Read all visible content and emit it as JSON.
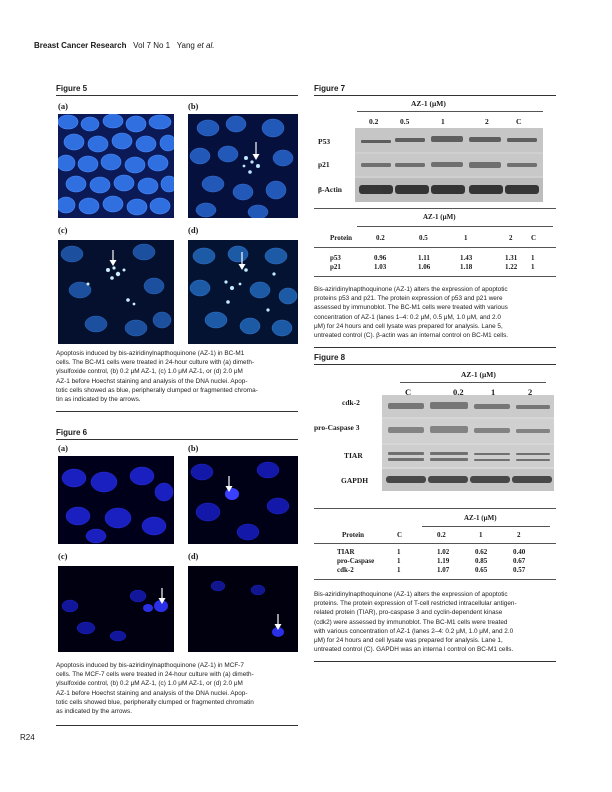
{
  "header": {
    "journal": "Breast Cancer Research",
    "volume": "Vol 7 No 1",
    "authors": "Yang",
    "etal": "et al."
  },
  "page_number": "R24",
  "figure5": {
    "title": "Figure 5",
    "panels": [
      "(a)",
      "(b)",
      "(c)",
      "(d)"
    ],
    "caption_lines": [
      "Apoptosis induced by bis-aziridinylnapthoquinone (AZ-1) in BC-M1",
      "cells. The BC-M1 cells were treated in 24-hour culture with (a) dimeth-",
      "ylsulfoxide control, (b) 0.2 μM AZ-1, (c) 1.0 μM AZ-1, or (d) 2.0 μM",
      "AZ-1 before Hoechst staining and analysis of the DNA nuclei. Apop-",
      "totic cells showed as blue, peripherally clumped or fragmented chroma-",
      "tin as indicated by the arrows."
    ]
  },
  "figure6": {
    "title": "Figure 6",
    "panels": [
      "(a)",
      "(b)",
      "(c)",
      "(d)"
    ],
    "caption_lines": [
      "Apoptosis induced by bis-aziridinylnapthoquinone (AZ-1) in MCF-7",
      "cells. The MCF-7 cells were treated in 24-hour culture with (a) dimeth-",
      "ylsulfoxide control, (b) 0.2 μM AZ-1, (c) 1.0 μM AZ-1, or (d) 2.0 μM",
      "AZ-1 before Hoechst staining and analysis of the DNA nuclei. Apop-",
      "totic cells showed blue, peripherally clumped or fragmented chromatin",
      "as indicated by the arrows."
    ]
  },
  "figure7": {
    "title": "Figure 7",
    "blot_header": "AZ-1 (μM)",
    "lanes": [
      "0.2",
      "0.5",
      "1",
      "2",
      "C"
    ],
    "rows": [
      "P53",
      "p21",
      "β-Actin"
    ],
    "table_header": "AZ-1 (μM)",
    "table_columns": [
      "Protein",
      "0.2",
      "0.5",
      "1",
      "2",
      "C"
    ],
    "table_rows": [
      {
        "protein": "p53",
        "values": [
          "0.96",
          "1.11",
          "1.43",
          "1.31",
          "1"
        ]
      },
      {
        "protein": "p21",
        "values": [
          "1.03",
          "1.06",
          "1.18",
          "1.22",
          "1"
        ]
      }
    ],
    "caption_lines": [
      "Bis-aziridinylnapthoquinone (AZ-1) alters the expression of apoptotic",
      "proteins p53 and p21. The protein expression of p53 and p21 were",
      "assessed by immunoblot. The BC-M1 cells were treated with various",
      "concentration of AZ-1 (lanes 1–4: 0.2 μM, 0.5 μM, 1.0 μM, and 2.0",
      "μM) for 24 hours and cell lysate was prepared for analysis. Lane 5,",
      "untreated control (C). β-actin was an internal control on BC-M1 cells."
    ]
  },
  "figure8": {
    "title": "Figure 8",
    "blot_header": "AZ-1 (μM)",
    "lanes": [
      "C",
      "0.2",
      "1",
      "2"
    ],
    "rows": [
      "cdk-2",
      "pro-Caspase 3",
      "TIAR",
      "GAPDH"
    ],
    "table_header": "AZ-1 (μM)",
    "table_columns": [
      "Protein",
      "C",
      "0.2",
      "1",
      "2"
    ],
    "table_rows": [
      {
        "protein": "TIAR",
        "values": [
          "1",
          "1.02",
          "0.62",
          "0.40"
        ]
      },
      {
        "protein": "pro-Caspase",
        "values": [
          "1",
          "1.19",
          "0.85",
          "0.67"
        ]
      },
      {
        "protein": "cdk-2",
        "values": [
          "1",
          "1.07",
          "0.65",
          "0.57"
        ]
      }
    ],
    "caption_lines": [
      "Bis-aziridinylnapthoquinone (AZ-1) alters the expression of apoptotic",
      "proteins. The protein expression of T-cell restricted intracellular antigen-",
      "related protein (TIAR), pro-caspase 3 and cyclin-dependent kinase",
      "(cdk2) were assessed by immunoblot. The BC-M1 cells were treated",
      "with various concentration of AZ-1 (lanes 2–4: 0.2 μM, 1.0 μM, and 2.0",
      "μM) for 24 hours and cell lysate was prepared for analysis. Lane 1,",
      "untreated control (C). GAPDH was an interna l control on BC-M1 cells."
    ]
  }
}
